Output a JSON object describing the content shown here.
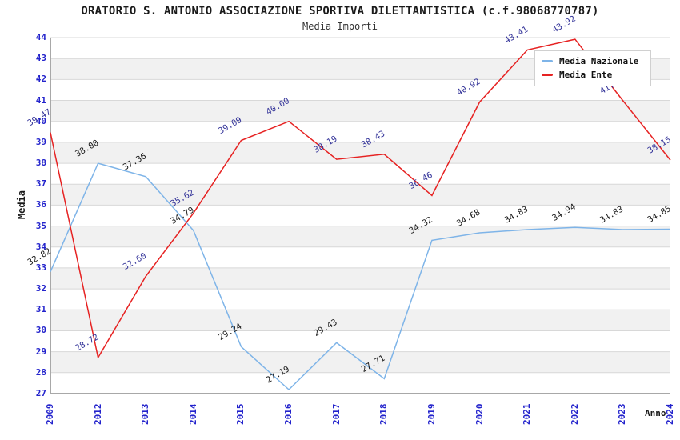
{
  "title": "ORATORIO S. ANTONIO ASSOCIAZIONE SPORTIVA DILETTANTISTICA (c.f.98068770787)",
  "subtitle": "Media Importi",
  "chart_data": {
    "type": "line",
    "x": [
      "2009",
      "2012",
      "2013",
      "2014",
      "2015",
      "2016",
      "2017",
      "2018",
      "2019",
      "2020",
      "2021",
      "2022",
      "2023",
      "2024"
    ],
    "series": [
      {
        "name": "Media Nazionale",
        "color": "#7eb4e8",
        "label_color": "#1a1a1a",
        "values": [
          32.82,
          38.0,
          37.36,
          34.79,
          29.24,
          27.19,
          29.43,
          27.71,
          34.32,
          34.68,
          34.83,
          34.94,
          34.83,
          34.85
        ]
      },
      {
        "name": "Media Ente",
        "color": "#e62222",
        "label_color": "#333399",
        "values": [
          39.47,
          28.72,
          32.6,
          35.62,
          39.09,
          40.0,
          38.19,
          38.43,
          36.46,
          40.92,
          43.41,
          43.92,
          41.0,
          38.15
        ]
      }
    ],
    "xlabel": "Anno",
    "ylabel": "Media",
    "ylim": [
      27,
      44
    ],
    "ytick_step": 1,
    "grid": "horizontal gridlines with alternating white/gray bands",
    "legend_position": "top-right inside plot",
    "point_labels": "values shown at each point, rotated -30deg, 2 decimals"
  },
  "colors": {
    "tick_label": "#2323cc",
    "band": "#f1f1f1",
    "grid": "#d8d8d8",
    "plot_border": "#a8a8a8"
  },
  "legend": {
    "items": [
      {
        "label": "Media Nazionale"
      },
      {
        "label": "Media Ente"
      }
    ]
  }
}
